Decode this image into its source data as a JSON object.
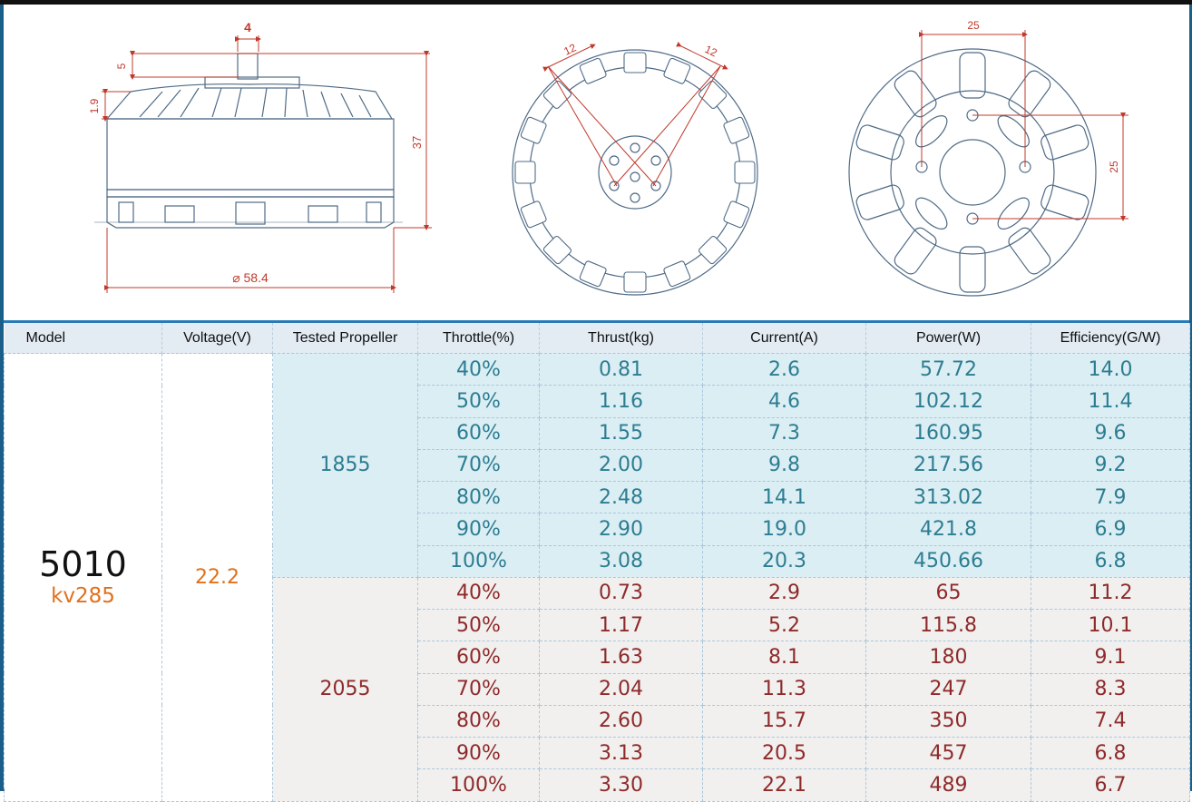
{
  "dimensions": {
    "shaft_width": "4",
    "shaft_length": "5",
    "base_height": "1.9",
    "total_height": "37",
    "diameter": "⌀ 58.4",
    "slot_left": "12",
    "slot_right": "12",
    "hole_spacing_h": "25",
    "hole_spacing_v": "25"
  },
  "headers": [
    "Model",
    "Voltage(V)",
    "Tested Propeller",
    "Throttle(%)",
    "Thrust(kg)",
    "Current(A)",
    "Power(W)",
    "Efficiency(G/W)"
  ],
  "model": {
    "number": "5010",
    "kv": "kv285"
  },
  "voltage": "22.2",
  "propellers": [
    {
      "name": "1855",
      "rows": [
        [
          "40%",
          "0.81",
          "2.6",
          "57.72",
          "14.0"
        ],
        [
          "50%",
          "1.16",
          "4.6",
          "102.12",
          "11.4"
        ],
        [
          "60%",
          "1.55",
          "7.3",
          "160.95",
          "9.6"
        ],
        [
          "70%",
          "2.00",
          "9.8",
          "217.56",
          "9.2"
        ],
        [
          "80%",
          "2.48",
          "14.1",
          "313.02",
          "7.9"
        ],
        [
          "90%",
          "2.90",
          "19.0",
          "421.8",
          "6.9"
        ],
        [
          "100%",
          "3.08",
          "20.3",
          "450.66",
          "6.8"
        ]
      ]
    },
    {
      "name": "2055",
      "rows": [
        [
          "40%",
          "0.73",
          "2.9",
          "65",
          "11.2"
        ],
        [
          "50%",
          "1.17",
          "5.2",
          "115.8",
          "10.1"
        ],
        [
          "60%",
          "1.63",
          "8.1",
          "180",
          "9.1"
        ],
        [
          "70%",
          "2.04",
          "11.3",
          "247",
          "8.3"
        ],
        [
          "80%",
          "2.60",
          "15.7",
          "350",
          "7.4"
        ],
        [
          "90%",
          "3.13",
          "20.5",
          "457",
          "6.8"
        ],
        [
          "100%",
          "3.30",
          "22.1",
          "489",
          "6.7"
        ]
      ]
    }
  ],
  "colors": {
    "accent_orange": "#e0711c",
    "blue_text": "#2d7d92",
    "blue_bg": "#dbeef3",
    "red_text": "#8e2a2a",
    "grey_bg": "#f1f0ef",
    "dimension_red": "#c0392b"
  }
}
